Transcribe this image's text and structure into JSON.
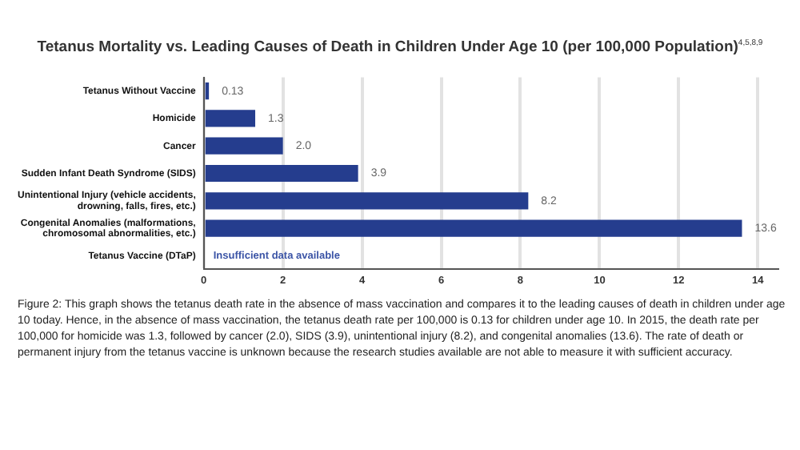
{
  "chart_data": {
    "type": "bar",
    "orientation": "horizontal",
    "title": "Tetanus Mortality vs. Leading Causes of Death in Children Under Age 10 (per 100,000 Population)$^{4,5,8,9}$",
    "categories": [
      "Tetanus Without Vaccine",
      "Homicide",
      "Cancer",
      "Sudden Infant Death Syndrome (SIDS)",
      "Unintentional Injury (vehicle accidents, drowning, falls, fires, etc.)",
      "Congenital Anomalies (malformations, chromosomal abnormalities, etc.)",
      "Tetanus Vaccine (DTaP)"
    ],
    "values": [
      0.13,
      1.3,
      2.0,
      3.9,
      8.2,
      13.6,
      null
    ],
    "value_labels": [
      "0.13",
      "1.3",
      "2.0",
      "3.9",
      "8.2",
      "13.6",
      null
    ],
    "color": "#253d8e",
    "xlim": [
      0,
      14.5
    ],
    "xticks": [
      0,
      2,
      4,
      6,
      8,
      10,
      12,
      14
    ],
    "grid": "x",
    "legend": false,
    "annotations": [
      "Insufficient data available",
      "Figure 2: This graph shows the tetanus death rate in the absence of mass vaccination and compares it to the leading causes of death in children under age 10 today. Hence, in the absence of mass vaccination, the tetanus death rate per 100,000 is 0.13 for children under age 10. In 2015, the death rate per 100,000 for homicide was 1.3, followed by cancer (2.0), SIDS (3.9), unintentional injury (8.2), and congenital anomalies (13.6). The rate of death or permanent injury from the tetanus vaccine is unknown because the research studies available are not able to measure it with sufficient accuracy."
    ]
  }
}
